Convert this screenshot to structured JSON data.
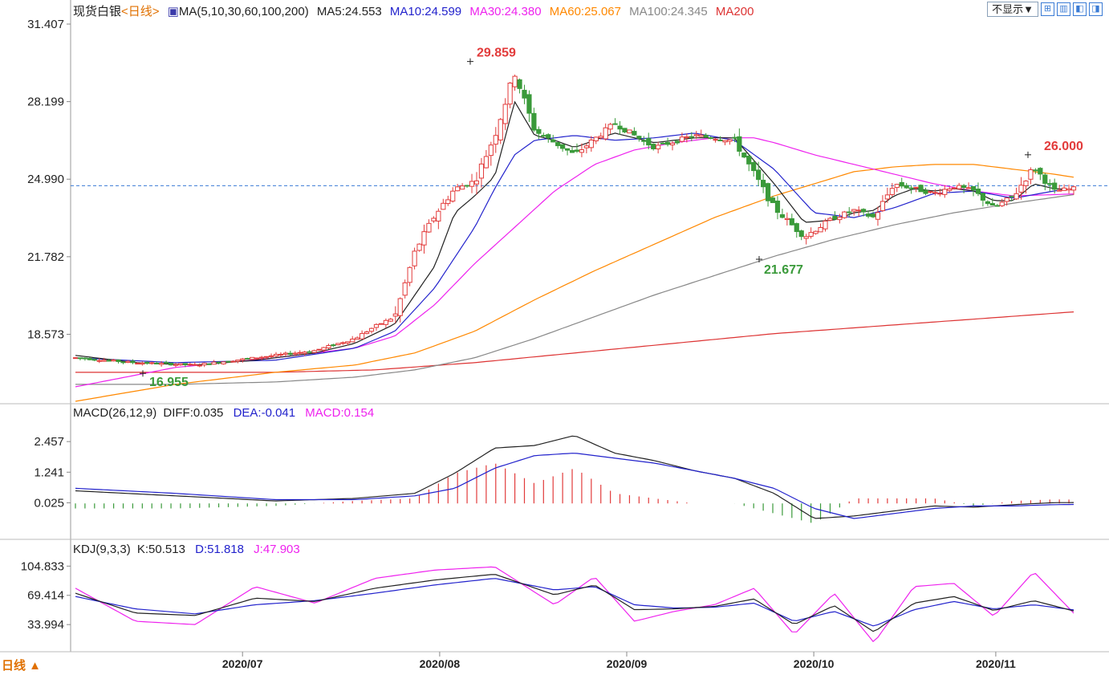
{
  "header": {
    "instrument": "现货白银",
    "period": "<日线>",
    "ma_label": "MA(5,10,30,60,100,200)",
    "ma_values": [
      {
        "text": "MA5:24.553",
        "color": "#222222"
      },
      {
        "text": "MA10:24.599",
        "color": "#2222cc"
      },
      {
        "text": "MA30:24.380",
        "color": "#ee22ee"
      },
      {
        "text": "MA60:25.067",
        "color": "#ff8800"
      },
      {
        "text": "MA100:24.345",
        "color": "#888888"
      },
      {
        "text": "MA200",
        "color": "#dd3333"
      }
    ],
    "hide_button": "不显示▼",
    "icons": [
      "grid-icon",
      "layout-icon",
      "chart-left-icon",
      "chart-right-icon"
    ]
  },
  "macd_header": {
    "label": "MACD(26,12,9)",
    "diff": "DIFF:0.035",
    "dea": "DEA:-0.041",
    "macd": "MACD:0.154"
  },
  "kdj_header": {
    "label": "KDJ(9,3,3)",
    "k": "K:50.513",
    "d": "D:51.818",
    "j": "J:47.903"
  },
  "footer": {
    "period_button": "日线 ▲"
  },
  "colors": {
    "up": "#e23b3b",
    "down": "#3a9a3a",
    "ma5": "#222222",
    "ma10": "#2222cc",
    "ma30": "#ee22ee",
    "ma60": "#ff8800",
    "ma100": "#888888",
    "ma200": "#dd3333",
    "dashed": "#3a7bd5",
    "axis": "#cccccc"
  },
  "chart_data": {
    "type": "candlestick",
    "x_ticks": [
      "2020/07",
      "2020/08",
      "2020/09",
      "2020/10",
      "2020/11"
    ],
    "price_axis_ticks": [
      "31.407",
      "28.199",
      "24.990",
      "21.782",
      "18.573"
    ],
    "ylim": [
      15.8,
      31.407
    ],
    "current_price": 24.72,
    "annotations": [
      {
        "label": "29.859",
        "value": 29.859,
        "kind": "high"
      },
      {
        "label": "16.955",
        "value": 16.955,
        "kind": "low"
      },
      {
        "label": "21.677",
        "value": 21.677,
        "kind": "low"
      },
      {
        "label": "26.000",
        "value": 26.0,
        "kind": "high"
      }
    ],
    "price_anchors": {
      "x": [
        0,
        0.06,
        0.12,
        0.18,
        0.24,
        0.28,
        0.3,
        0.32,
        0.34,
        0.36,
        0.38,
        0.4,
        0.42,
        0.44,
        0.46,
        0.48,
        0.5,
        0.54,
        0.58,
        0.62,
        0.66,
        0.7,
        0.73,
        0.76,
        0.78,
        0.8,
        0.82,
        0.84,
        0.86,
        0.88,
        0.9,
        0.92,
        0.94,
        0.96,
        0.98,
        1
      ],
      "y": [
        17.6,
        17.4,
        17.3,
        17.6,
        17.9,
        18.4,
        18.9,
        19.3,
        22.0,
        23.5,
        24.6,
        24.9,
        26.8,
        29.4,
        27.0,
        26.5,
        26.0,
        27.3,
        26.3,
        26.8,
        26.6,
        23.8,
        22.6,
        23.4,
        23.7,
        23.4,
        24.8,
        24.6,
        24.4,
        24.7,
        24.5,
        23.8,
        24.3,
        25.5,
        24.5,
        24.6
      ]
    },
    "ma_series": [
      {
        "name": "MA5",
        "anchors_x": [
          0,
          0.06,
          0.12,
          0.18,
          0.24,
          0.28,
          0.32,
          0.36,
          0.38,
          0.4,
          0.42,
          0.44,
          0.46,
          0.48,
          0.5,
          0.54,
          0.58,
          0.62,
          0.66,
          0.7,
          0.73,
          0.76,
          0.78,
          0.8,
          0.82,
          0.84,
          0.86,
          0.88,
          0.9,
          0.92,
          0.94,
          0.96,
          0.98,
          1
        ],
        "anchors_y": [
          17.7,
          17.4,
          17.3,
          17.5,
          17.8,
          18.2,
          19.0,
          21.4,
          23.6,
          24.3,
          25.1,
          28.2,
          26.8,
          26.6,
          26.3,
          26.9,
          26.5,
          26.7,
          26.7,
          24.8,
          23.2,
          23.3,
          23.6,
          23.7,
          24.3,
          24.6,
          24.5,
          24.6,
          24.5,
          24.1,
          24.1,
          24.8,
          24.6,
          24.55
        ]
      },
      {
        "name": "MA10",
        "anchors_x": [
          0,
          0.1,
          0.2,
          0.28,
          0.32,
          0.36,
          0.4,
          0.42,
          0.44,
          0.46,
          0.5,
          0.54,
          0.58,
          0.62,
          0.66,
          0.7,
          0.74,
          0.78,
          0.82,
          0.86,
          0.9,
          0.94,
          0.98,
          1
        ],
        "anchors_y": [
          17.6,
          17.4,
          17.5,
          18.0,
          18.7,
          20.5,
          23.0,
          24.6,
          26.0,
          26.6,
          26.8,
          26.6,
          26.7,
          26.9,
          26.6,
          25.4,
          23.6,
          23.4,
          23.8,
          24.4,
          24.5,
          24.2,
          24.5,
          24.6
        ]
      },
      {
        "name": "MA30",
        "anchors_x": [
          0,
          0.1,
          0.2,
          0.28,
          0.32,
          0.36,
          0.4,
          0.44,
          0.48,
          0.52,
          0.56,
          0.6,
          0.64,
          0.68,
          0.7,
          0.74,
          0.78,
          0.82,
          0.86,
          0.9,
          0.94,
          0.98,
          1
        ],
        "anchors_y": [
          16.4,
          17.2,
          17.6,
          18.0,
          18.5,
          19.8,
          21.5,
          23.0,
          24.5,
          25.6,
          26.2,
          26.5,
          26.7,
          26.7,
          26.5,
          26.0,
          25.6,
          25.2,
          24.8,
          24.5,
          24.3,
          24.35,
          24.38
        ]
      },
      {
        "name": "MA60",
        "anchors_x": [
          0,
          0.1,
          0.2,
          0.28,
          0.34,
          0.4,
          0.46,
          0.52,
          0.58,
          0.64,
          0.7,
          0.74,
          0.78,
          0.82,
          0.86,
          0.9,
          0.94,
          0.98,
          1
        ],
        "anchors_y": [
          15.8,
          16.5,
          17.0,
          17.3,
          17.8,
          18.7,
          20.0,
          21.2,
          22.3,
          23.4,
          24.3,
          24.8,
          25.3,
          25.5,
          25.6,
          25.6,
          25.4,
          25.2,
          25.07
        ]
      },
      {
        "name": "MA100",
        "anchors_x": [
          0,
          0.1,
          0.2,
          0.28,
          0.34,
          0.4,
          0.46,
          0.52,
          0.58,
          0.64,
          0.7,
          0.76,
          0.82,
          0.88,
          0.94,
          1
        ],
        "anchors_y": [
          16.5,
          16.5,
          16.6,
          16.8,
          17.1,
          17.6,
          18.4,
          19.3,
          20.2,
          21.0,
          21.8,
          22.5,
          23.1,
          23.6,
          24.0,
          24.35
        ]
      },
      {
        "name": "MA200",
        "anchors_x": [
          0,
          0.2,
          0.3,
          0.4,
          0.5,
          0.6,
          0.7,
          0.8,
          0.9,
          1
        ],
        "anchors_y": [
          17.0,
          17.0,
          17.1,
          17.4,
          17.8,
          18.2,
          18.6,
          18.9,
          19.2,
          19.5
        ]
      }
    ],
    "macd": {
      "axis_ticks": [
        "2.457",
        "1.241",
        "0.025"
      ],
      "ylim": [
        -1.3,
        3.1
      ],
      "diff_anchors_x": [
        0,
        0.1,
        0.2,
        0.28,
        0.34,
        0.38,
        0.42,
        0.46,
        0.5,
        0.54,
        0.58,
        0.62,
        0.66,
        0.7,
        0.74,
        0.78,
        0.82,
        0.86,
        0.9,
        0.94,
        0.98,
        1
      ],
      "diff_anchors_y": [
        0.5,
        0.3,
        0.1,
        0.2,
        0.4,
        1.2,
        2.2,
        2.3,
        2.7,
        2.0,
        1.7,
        1.3,
        1.0,
        0.4,
        -0.6,
        -0.5,
        -0.3,
        -0.1,
        -0.15,
        -0.05,
        0.03,
        0.035
      ],
      "dea_anchors_x": [
        0,
        0.1,
        0.2,
        0.28,
        0.34,
        0.38,
        0.42,
        0.46,
        0.5,
        0.54,
        0.58,
        0.62,
        0.66,
        0.7,
        0.74,
        0.78,
        0.82,
        0.86,
        0.9,
        0.94,
        0.98,
        1
      ],
      "dea_anchors_y": [
        0.6,
        0.4,
        0.15,
        0.15,
        0.3,
        0.6,
        1.4,
        1.9,
        2.0,
        1.8,
        1.6,
        1.3,
        1.0,
        0.6,
        -0.2,
        -0.6,
        -0.4,
        -0.2,
        -0.1,
        -0.1,
        -0.05,
        -0.041
      ]
    },
    "kdj": {
      "axis_ticks": [
        "104.833",
        "69.414",
        "33.994"
      ],
      "ylim": [
        5,
        110
      ],
      "k_anchors_x": [
        0,
        0.06,
        0.12,
        0.18,
        0.24,
        0.3,
        0.36,
        0.42,
        0.48,
        0.52,
        0.56,
        0.6,
        0.64,
        0.68,
        0.72,
        0.76,
        0.8,
        0.84,
        0.88,
        0.92,
        0.96,
        1
      ],
      "k_anchors_y": [
        72,
        48,
        45,
        66,
        62,
        78,
        88,
        95,
        70,
        82,
        52,
        53,
        56,
        65,
        34,
        57,
        25,
        60,
        68,
        51,
        63,
        50.5
      ],
      "d_anchors_x": [
        0,
        0.06,
        0.12,
        0.18,
        0.24,
        0.3,
        0.36,
        0.42,
        0.48,
        0.52,
        0.56,
        0.6,
        0.64,
        0.68,
        0.72,
        0.76,
        0.8,
        0.84,
        0.88,
        0.92,
        0.96,
        1
      ],
      "d_anchors_y": [
        68,
        53,
        47,
        58,
        63,
        72,
        82,
        90,
        76,
        80,
        58,
        54,
        55,
        60,
        38,
        50,
        32,
        52,
        62,
        53,
        58,
        51.8
      ],
      "j_anchors_x": [
        0,
        0.06,
        0.12,
        0.18,
        0.24,
        0.3,
        0.36,
        0.42,
        0.48,
        0.52,
        0.56,
        0.6,
        0.64,
        0.68,
        0.72,
        0.76,
        0.8,
        0.84,
        0.88,
        0.92,
        0.96,
        1
      ],
      "j_anchors_y": [
        78,
        38,
        34,
        80,
        60,
        90,
        100,
        104,
        58,
        92,
        38,
        50,
        58,
        78,
        22,
        72,
        12,
        80,
        84,
        44,
        98,
        47.9
      ]
    }
  }
}
